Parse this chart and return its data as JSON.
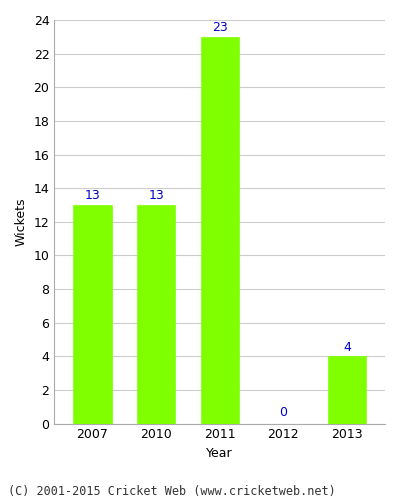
{
  "categories": [
    "2007",
    "2010",
    "2011",
    "2012",
    "2013"
  ],
  "values": [
    13,
    13,
    23,
    0,
    4
  ],
  "bar_color": "#7FFF00",
  "bar_edge_color": "#7FFF00",
  "label_color": "#0000CC",
  "xlabel": "Year",
  "ylabel": "Wickets",
  "ylim": [
    0,
    24
  ],
  "yticks": [
    0,
    2,
    4,
    6,
    8,
    10,
    12,
    14,
    16,
    18,
    20,
    22,
    24
  ],
  "footnote": "(C) 2001-2015 Cricket Web (www.cricketweb.net)",
  "background_color": "#ffffff",
  "plot_bg_color": "#ffffff",
  "grid_color": "#cccccc",
  "label_fontsize": 9,
  "axis_fontsize": 9,
  "footnote_fontsize": 8.5,
  "bar_width": 0.6
}
